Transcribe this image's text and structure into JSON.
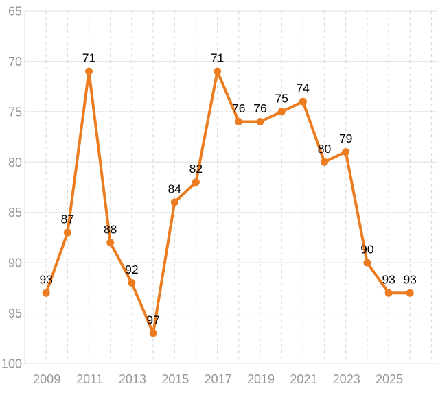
{
  "chart_data": {
    "type": "line",
    "x": [
      2009,
      2010,
      2011,
      2012,
      2013,
      2014,
      2015,
      2016,
      2017,
      2018,
      2019,
      2020,
      2021,
      2022,
      2023,
      2024,
      2025,
      2026
    ],
    "values": [
      93,
      87,
      71,
      88,
      92,
      97,
      84,
      82,
      71,
      76,
      76,
      75,
      74,
      80,
      79,
      90,
      93,
      93
    ],
    "point_labels": [
      "93",
      "87",
      "71",
      "88",
      "92",
      "97",
      "84",
      "82",
      "71",
      "76",
      "76",
      "75",
      "74",
      "80",
      "79",
      "90",
      "93",
      "93"
    ],
    "x_ticks": [
      2009,
      2011,
      2013,
      2015,
      2017,
      2019,
      2021,
      2023,
      2025
    ],
    "x_tick_labels": [
      "2009",
      "2011",
      "2013",
      "2015",
      "2017",
      "2019",
      "2021",
      "2023",
      "2025"
    ],
    "y_ticks": [
      65,
      70,
      75,
      80,
      85,
      90,
      95,
      100
    ],
    "y_tick_labels": [
      "65",
      "70",
      "75",
      "80",
      "85",
      "90",
      "95",
      "100"
    ],
    "ylim": [
      65,
      100
    ],
    "y_axis_inverted": true,
    "title": "",
    "xlabel": "",
    "ylabel": "",
    "legend": "none",
    "grid": "horizontal-solid, vertical-dashed",
    "colors": {
      "line": "#ec7c20",
      "marker": "#ec7c20",
      "point_label": "#000000",
      "tick_label": "#97979c",
      "grid_solid": "#e6e6e9",
      "grid_dashed": "#dcdcdf",
      "axis_border": "#e2e2e5",
      "background": "#ffffff"
    }
  }
}
